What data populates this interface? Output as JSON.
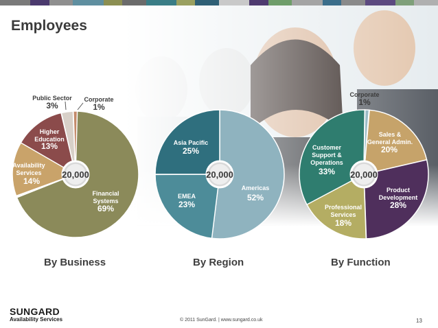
{
  "slide": {
    "title": "Employees",
    "footer": "© 2011 SunGard.  |  www.sungard.co.uk",
    "page_number": "13",
    "logo_line1": "SUNGARD",
    "logo_line2": "Availability Services",
    "stripe_colors": [
      "#7a7a7a",
      "#4b3a6e",
      "#8f8f8f",
      "#5f8fa0",
      "#8c8f52",
      "#6b6b6b",
      "#3a7d86",
      "#9aa060",
      "#2f5f75",
      "#c9c9c9",
      "#4f3b70",
      "#6f9d6a",
      "#a4a4a4",
      "#3b6e8a",
      "#8a8a8a",
      "#5c4a80",
      "#7fa07a",
      "#b0b0b0"
    ]
  },
  "chart_data": [
    {
      "type": "pie",
      "title": "By Business",
      "total_label": "20,000",
      "slices": [
        {
          "name": "Financial Systems",
          "value": 69,
          "label": "69%",
          "color": "#8b8a5a"
        },
        {
          "name": "Availability Services",
          "value": 14,
          "label": "14%",
          "color": "#c9a36a"
        },
        {
          "name": "Higher Education",
          "value": 13,
          "label": "13%",
          "color": "#8b4b4b"
        },
        {
          "name": "Public Sector",
          "value": 3,
          "label": "3%",
          "color": "#d8d0c8"
        },
        {
          "name": "Corporate",
          "value": 1,
          "label": "1%",
          "color": "#c48a6a"
        }
      ]
    },
    {
      "type": "pie",
      "title": "By Region",
      "total_label": "20,000",
      "slices": [
        {
          "name": "Americas",
          "value": 52,
          "label": "52%",
          "color": "#8fb3bf"
        },
        {
          "name": "EMEA",
          "value": 23,
          "label": "23%",
          "color": "#4d8c99"
        },
        {
          "name": "Asia Pacific",
          "value": 25,
          "label": "25%",
          "color": "#2f6f7e"
        }
      ]
    },
    {
      "type": "pie",
      "title": "By Function",
      "total_label": "20,000",
      "slices": [
        {
          "name": "Sales & General Admin.",
          "value": 20,
          "label": "20%",
          "color": "#c6a36a"
        },
        {
          "name": "Product Development",
          "value": 28,
          "label": "28%",
          "color": "#4f2f5c"
        },
        {
          "name": "Professional Services",
          "value": 18,
          "label": "18%",
          "color": "#b4ad63"
        },
        {
          "name": "Customer Support & Operations",
          "value": 33,
          "label": "33%",
          "color": "#2f7d6f"
        },
        {
          "name": "Corporate",
          "value": 1,
          "label": "1%",
          "color": "#9cbcc6"
        }
      ]
    }
  ]
}
